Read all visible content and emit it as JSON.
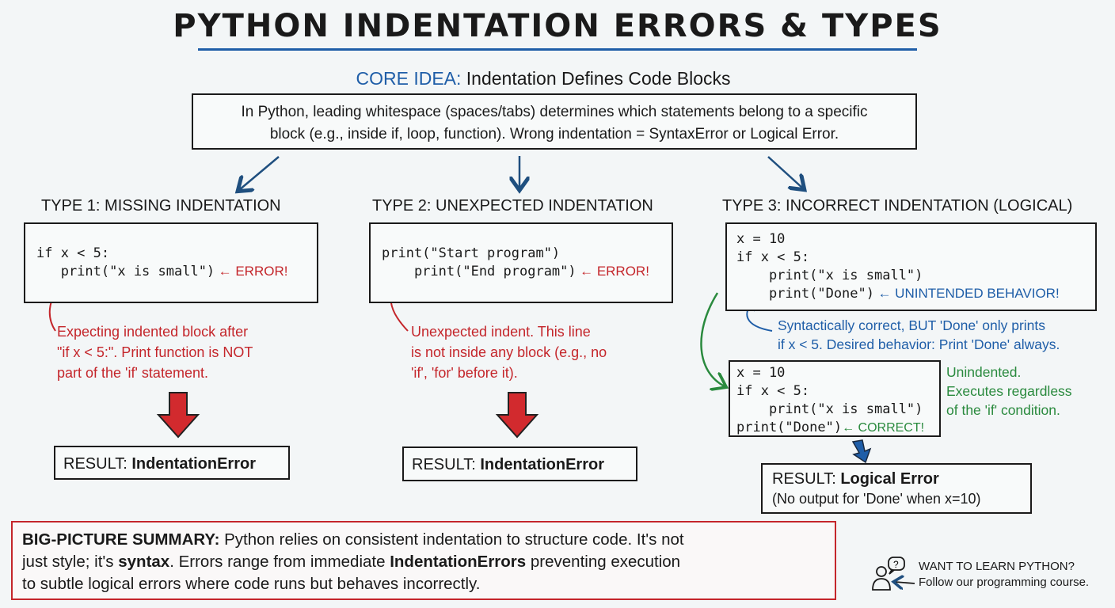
{
  "title": "PYTHON INDENTATION ERRORS & TYPES",
  "core": {
    "label": "CORE IDEA:",
    "text": " Indentation Defines Code Blocks",
    "description_1": "In Python, leading whitespace (spaces/tabs) determines which statements belong to a specific",
    "description_2": "block (e.g., inside if, loop, function). Wrong indentation = SyntaxError or Logical Error."
  },
  "type1": {
    "heading": "TYPE 1: MISSING INDENTATION",
    "code_1": "if x < 5:",
    "code_2": "   print(\"x is small\")",
    "marker": "← ERROR!",
    "note_1": "Expecting indented block after",
    "note_2": "\"if x < 5:\". Print function is NOT",
    "note_3": "part of the 'if' statement.",
    "result_label": "RESULT: ",
    "result_value": "IndentationError"
  },
  "type2": {
    "heading": "TYPE 2: UNEXPECTED INDENTATION",
    "code_1": "print(\"Start program\")",
    "code_2": "    print(\"End program\")",
    "marker": "← ERROR!",
    "note_1": "Unexpected indent. This line",
    "note_2": "is not inside any block (e.g., no",
    "note_3": "'if', 'for' before it).",
    "result_label": "RESULT: ",
    "result_value": "IndentationError"
  },
  "type3": {
    "heading": "TYPE 3: INCORRECT INDENTATION (LOGICAL)",
    "code_1": "x = 10",
    "code_2": "if x < 5:",
    "code_3": "    print(\"x is small\")",
    "code_4": "    print(\"Done\")",
    "marker": "← UNINTENDED BEHAVIOR!",
    "note_1": "Syntactically correct, BUT 'Done' only prints",
    "note_2": "if x < 5. Desired behavior: Print 'Done' always.",
    "fixed_1": "x = 10",
    "fixed_2": "if x < 5:",
    "fixed_3": "    print(\"x is small\")",
    "fixed_4": "print(\"Done\")",
    "fixed_marker": "← CORRECT!",
    "fix_note_1": "Unindented.",
    "fix_note_2": "Executes regardless",
    "fix_note_3": "of the 'if' condition.",
    "result_label": "RESULT: ",
    "result_value": "Logical Error",
    "result_detail": "(No output for 'Done' when x=10)"
  },
  "summary": {
    "label": "BIG-PICTURE SUMMARY:",
    "t1": " Python relies on consistent indentation to structure code. It's not",
    "t2": "just style; it's ",
    "t2b": "syntax",
    "t2c": ". Errors range from immediate ",
    "t2d": "IndentationErrors",
    "t2e": " preventing execution",
    "t3": "to subtle logical errors where code runs but behaves incorrectly."
  },
  "cta": {
    "line1": "WANT TO LEARN PYTHON?",
    "line2": "Follow our programming course.",
    "icon": "person-question-icon",
    "bubble": "?"
  },
  "colors": {
    "red": "#c4262b",
    "blue": "#1f5ea8",
    "green": "#2a8a3e"
  }
}
